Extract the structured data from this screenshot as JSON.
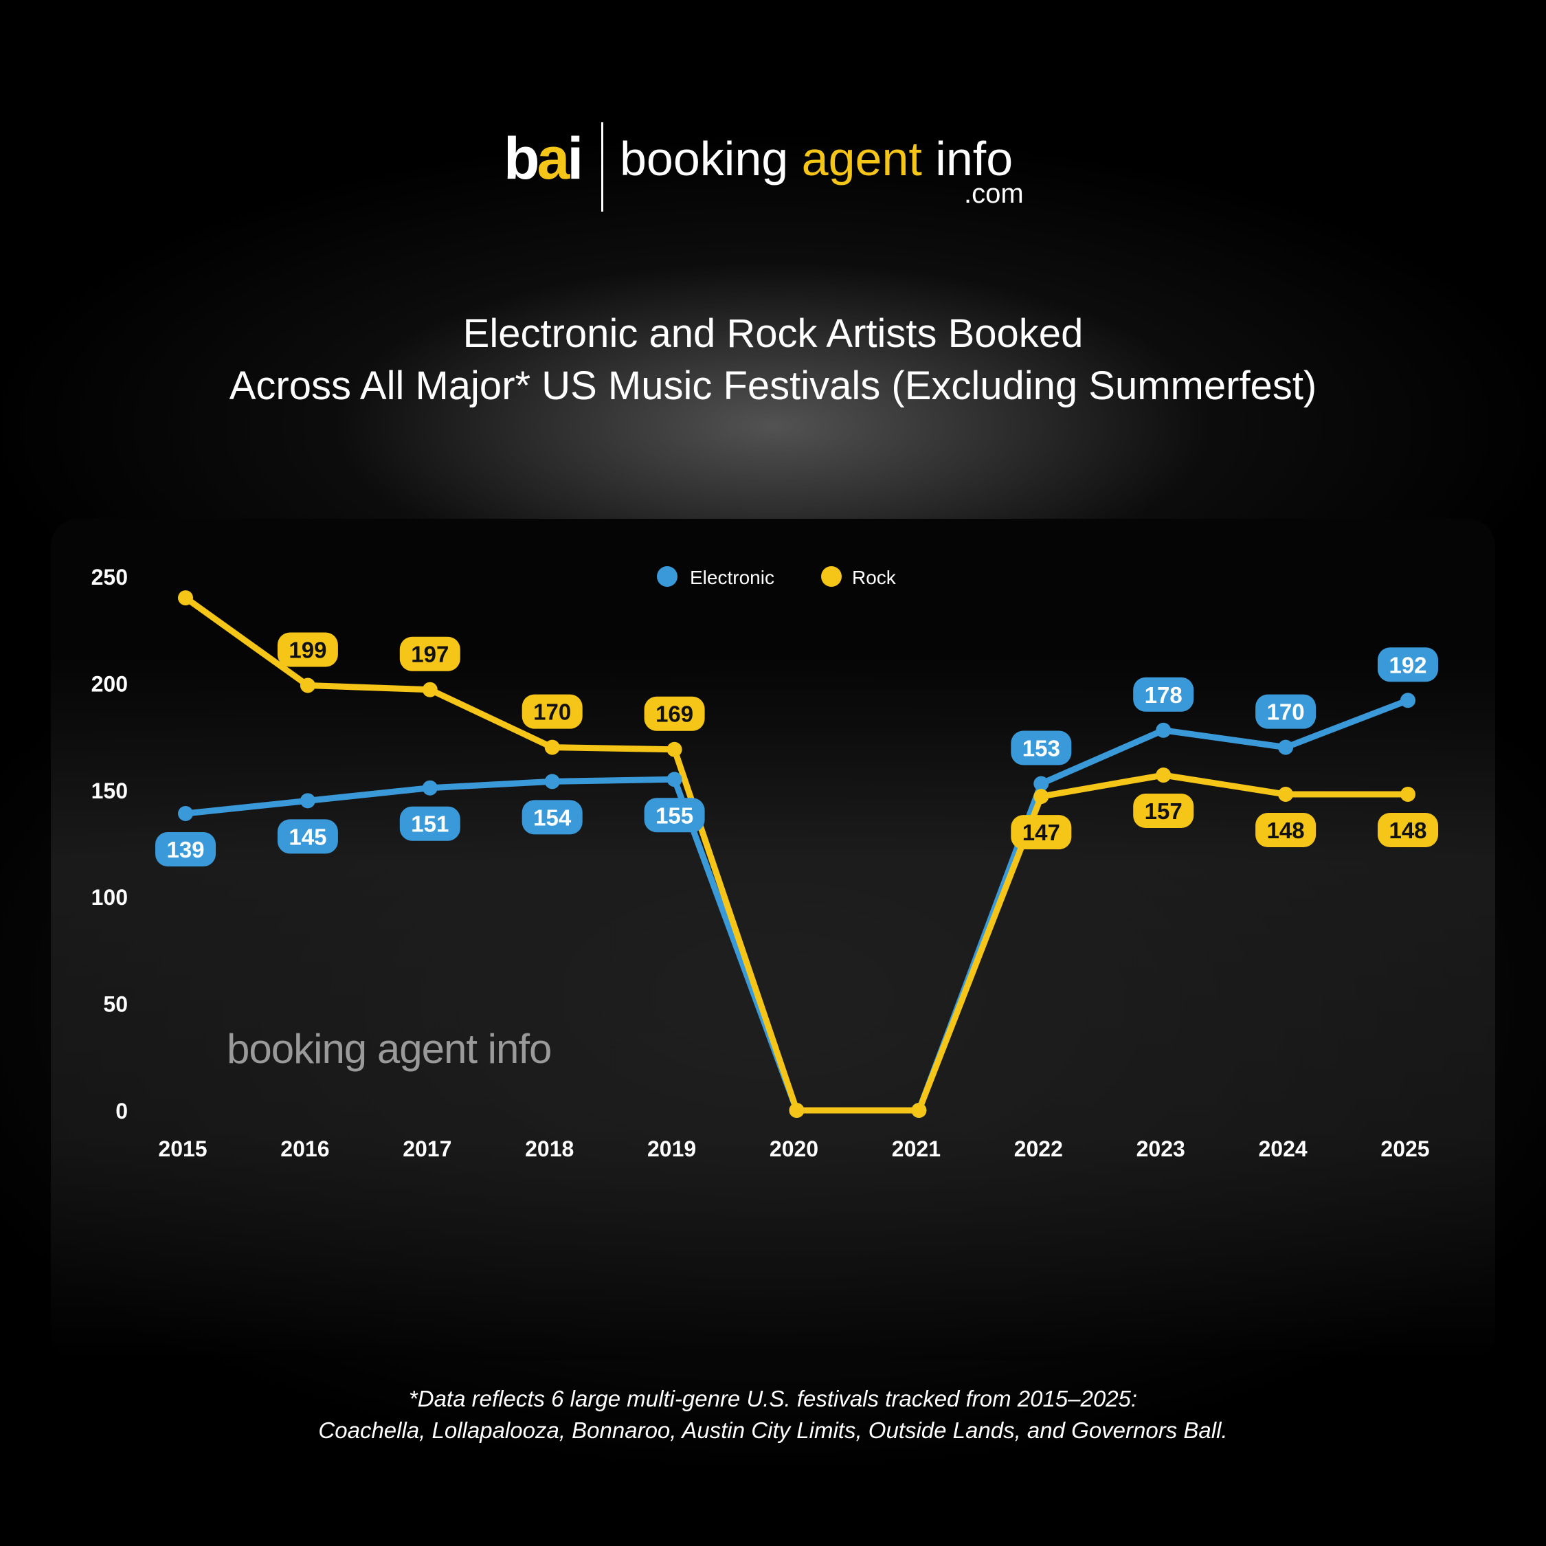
{
  "logo": {
    "mark": "bai",
    "word1": "booking",
    "word2": "agent",
    "word3": "info",
    "domain": ".com"
  },
  "title": {
    "line1": "Electronic and Rock Artists Booked",
    "line2": "Across All Major* US Music Festivals (Excluding Summerfest)"
  },
  "watermark": "booking agent info",
  "footnote": {
    "line1": "*Data reflects 6 large multi-genre U.S. festivals tracked from 2015–2025:",
    "line2": "Coachella, Lollapalooza, Bonnaroo, Austin City Limits, Outside Lands, and Governors Ball."
  },
  "colors": {
    "electronic": "#3a9ad9",
    "rock": "#f5c518",
    "background": "#000000"
  },
  "chart_data": {
    "type": "line",
    "title": "Electronic and Rock Artists Booked Across All Major* US Music Festivals (Excluding Summerfest)",
    "xlabel": "",
    "ylabel": "",
    "categories": [
      "2015",
      "2016",
      "2017",
      "2018",
      "2019",
      "2020",
      "2021",
      "2022",
      "2023",
      "2024",
      "2025"
    ],
    "series": [
      {
        "name": "Electronic",
        "color": "#3a9ad9",
        "values": [
          139,
          145,
          151,
          154,
          155,
          0,
          0,
          153,
          178,
          170,
          192
        ],
        "labels": [
          "139",
          "145",
          "151",
          "154",
          "155",
          "",
          "",
          "153",
          "178",
          "170",
          "192"
        ]
      },
      {
        "name": "Rock",
        "color": "#f5c518",
        "values": [
          240,
          199,
          197,
          170,
          169,
          0,
          0,
          147,
          157,
          148,
          148
        ],
        "labels": [
          "",
          "199",
          "197",
          "170",
          "169",
          "",
          "",
          "147",
          "157",
          "148",
          "148"
        ]
      }
    ],
    "ylim": [
      0,
      250
    ],
    "yticks": [
      0,
      50,
      100,
      150,
      200,
      250
    ],
    "grid": false,
    "legend": "top-center"
  }
}
